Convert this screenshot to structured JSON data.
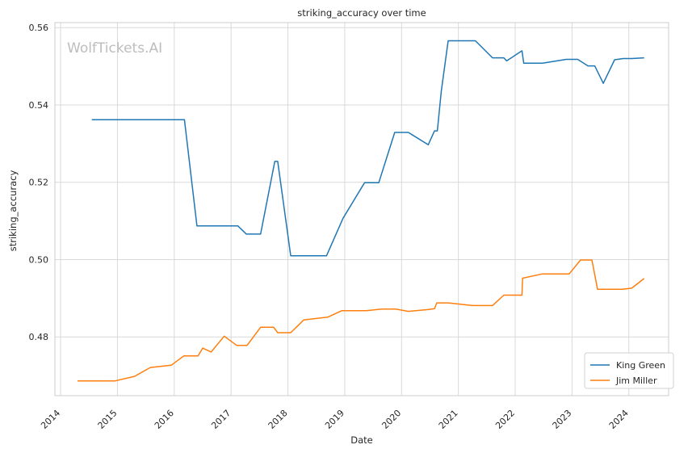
{
  "chart_data": {
    "type": "line",
    "title": "striking_accuracy over time",
    "xlabel": "Date",
    "ylabel": "striking_accuracy",
    "watermark": "WolfTickets.AI",
    "x_ticks": [
      "2014",
      "2015",
      "2016",
      "2017",
      "2018",
      "2019",
      "2020",
      "2021",
      "2022",
      "2023",
      "2024"
    ],
    "y_ticks": [
      "0.48",
      "0.50",
      "0.52",
      "0.54",
      "0.56"
    ],
    "xlim": [
      2013.9,
      2024.7
    ],
    "ylim": [
      0.4648,
      0.5613
    ],
    "grid": true,
    "legend_position": "bottom-right",
    "series": [
      {
        "name": "King Green",
        "color": "#1f77b4",
        "points": [
          [
            2014.55,
            0.5362
          ],
          [
            2016.18,
            0.5362
          ],
          [
            2016.4,
            0.5087
          ],
          [
            2017.12,
            0.5087
          ],
          [
            2017.27,
            0.5066
          ],
          [
            2017.52,
            0.5066
          ],
          [
            2017.77,
            0.5254
          ],
          [
            2017.82,
            0.5254
          ],
          [
            2018.05,
            0.501
          ],
          [
            2018.68,
            0.501
          ],
          [
            2018.97,
            0.5107
          ],
          [
            2019.35,
            0.5199
          ],
          [
            2019.6,
            0.5199
          ],
          [
            2019.88,
            0.5329
          ],
          [
            2020.12,
            0.5329
          ],
          [
            2020.47,
            0.5297
          ],
          [
            2020.58,
            0.5333
          ],
          [
            2020.63,
            0.5333
          ],
          [
            2020.7,
            0.5436
          ],
          [
            2020.82,
            0.5566
          ],
          [
            2021.3,
            0.5566
          ],
          [
            2021.6,
            0.5522
          ],
          [
            2021.8,
            0.5522
          ],
          [
            2021.85,
            0.5514
          ],
          [
            2022.12,
            0.554
          ],
          [
            2022.15,
            0.5508
          ],
          [
            2022.48,
            0.5508
          ],
          [
            2022.9,
            0.5518
          ],
          [
            2023.1,
            0.5518
          ],
          [
            2023.28,
            0.5501
          ],
          [
            2023.4,
            0.5501
          ],
          [
            2023.55,
            0.5456
          ],
          [
            2023.75,
            0.5517
          ],
          [
            2023.9,
            0.552
          ],
          [
            2024.05,
            0.552
          ],
          [
            2024.27,
            0.5522
          ]
        ]
      },
      {
        "name": "Jim Miller",
        "color": "#ff7f0e",
        "points": [
          [
            2014.3,
            0.4686
          ],
          [
            2014.95,
            0.4686
          ],
          [
            2015.3,
            0.4698
          ],
          [
            2015.58,
            0.4721
          ],
          [
            2015.95,
            0.4727
          ],
          [
            2016.17,
            0.4751
          ],
          [
            2016.42,
            0.4751
          ],
          [
            2016.5,
            0.4771
          ],
          [
            2016.65,
            0.4761
          ],
          [
            2016.88,
            0.4802
          ],
          [
            2017.1,
            0.4778
          ],
          [
            2017.28,
            0.4778
          ],
          [
            2017.52,
            0.4825
          ],
          [
            2017.75,
            0.4825
          ],
          [
            2017.82,
            0.4811
          ],
          [
            2018.05,
            0.4811
          ],
          [
            2018.28,
            0.4844
          ],
          [
            2018.7,
            0.4851
          ],
          [
            2018.95,
            0.4868
          ],
          [
            2019.38,
            0.4868
          ],
          [
            2019.65,
            0.4872
          ],
          [
            2019.9,
            0.4872
          ],
          [
            2020.12,
            0.4866
          ],
          [
            2020.48,
            0.4871
          ],
          [
            2020.58,
            0.4873
          ],
          [
            2020.62,
            0.4888
          ],
          [
            2020.82,
            0.4888
          ],
          [
            2021.25,
            0.4881
          ],
          [
            2021.6,
            0.4881
          ],
          [
            2021.8,
            0.4908
          ],
          [
            2022.12,
            0.4908
          ],
          [
            2022.13,
            0.4952
          ],
          [
            2022.48,
            0.4963
          ],
          [
            2022.95,
            0.4963
          ],
          [
            2023.15,
            0.4999
          ],
          [
            2023.35,
            0.4999
          ],
          [
            2023.45,
            0.4923
          ],
          [
            2023.88,
            0.4923
          ],
          [
            2024.05,
            0.4926
          ],
          [
            2024.27,
            0.4951
          ]
        ]
      }
    ]
  }
}
